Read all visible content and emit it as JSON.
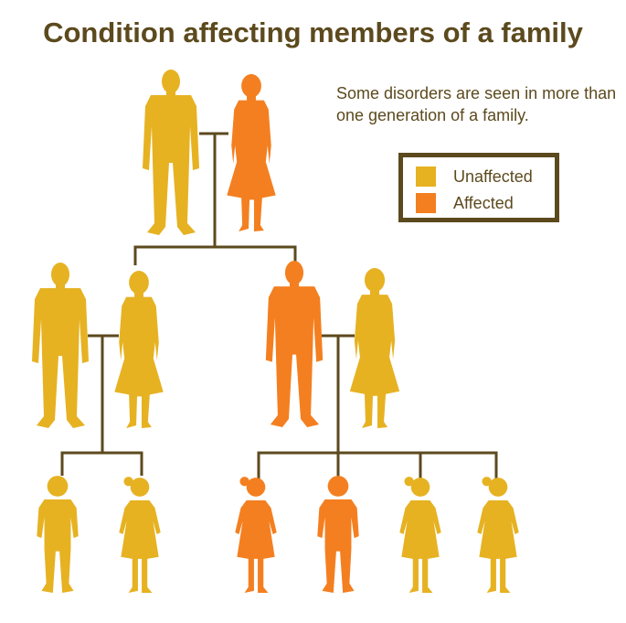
{
  "title": "Condition affecting members of a family",
  "subtitle": "Some disorders are seen in more than one generation of a family.",
  "colors": {
    "unaffected": "#E6B222",
    "affected": "#F47F20",
    "text": "#5C4A1E",
    "lines": "#5C4A1E"
  },
  "legend": {
    "items": [
      {
        "label": "Unaffected",
        "status": "unaffected"
      },
      {
        "label": "Affected",
        "status": "affected"
      }
    ]
  },
  "generations": [
    {
      "couples": [
        {
          "partners": [
            {
              "type": "man",
              "status": "unaffected"
            },
            {
              "type": "woman",
              "status": "affected"
            }
          ]
        }
      ]
    },
    {
      "couples": [
        {
          "partners": [
            {
              "type": "man",
              "status": "unaffected"
            },
            {
              "type": "woman",
              "status": "unaffected"
            }
          ]
        },
        {
          "partners": [
            {
              "type": "man",
              "status": "affected"
            },
            {
              "type": "woman",
              "status": "unaffected"
            }
          ]
        }
      ]
    },
    {
      "children": [
        {
          "type": "boy",
          "status": "unaffected"
        },
        {
          "type": "girl",
          "status": "unaffected"
        },
        {
          "type": "girl",
          "status": "affected"
        },
        {
          "type": "boy",
          "status": "affected"
        },
        {
          "type": "girl",
          "status": "unaffected"
        },
        {
          "type": "girl",
          "status": "unaffected"
        }
      ]
    }
  ]
}
